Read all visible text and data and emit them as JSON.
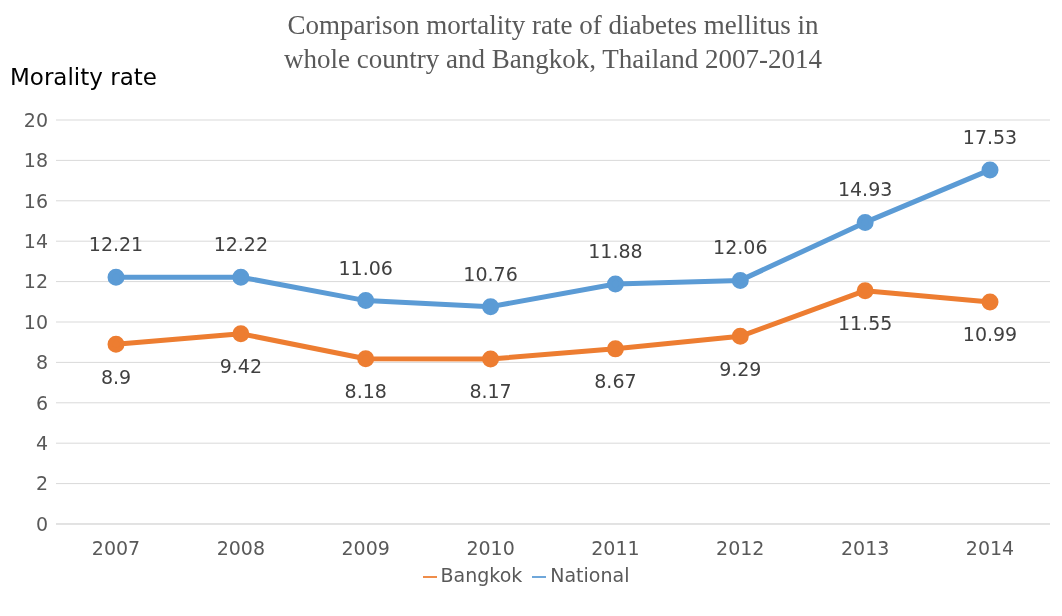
{
  "chart_data": {
    "type": "line",
    "title": "Comparison mortality rate of diabetes mellitus in whole country and Bangkok, Thailand 2007-2014",
    "ylabel": "Morality rate",
    "categories": [
      "2007",
      "2008",
      "2009",
      "2010",
      "2011",
      "2012",
      "2013",
      "2014"
    ],
    "series": [
      {
        "name": "National",
        "color": "#5b9bd5",
        "values": [
          12.21,
          12.22,
          11.06,
          10.76,
          11.88,
          12.06,
          14.93,
          17.53
        ]
      },
      {
        "name": "Bangkok",
        "color": "#ed7d31",
        "values": [
          8.9,
          9.42,
          8.18,
          8.17,
          8.67,
          9.29,
          11.55,
          10.99
        ]
      }
    ],
    "ylim": [
      0,
      20
    ],
    "yticks": [
      0,
      2,
      4,
      6,
      8,
      10,
      12,
      14,
      16,
      18,
      20
    ],
    "grid": "y",
    "legend": "bottom",
    "marker": "circle",
    "line_style": "solid",
    "data_labels": true
  }
}
